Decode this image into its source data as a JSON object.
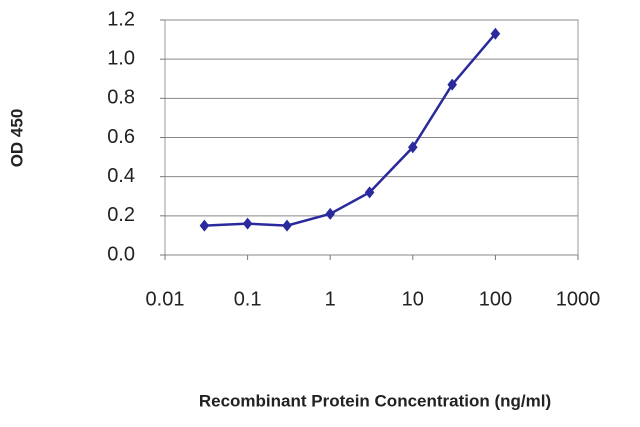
{
  "chart_data": {
    "type": "line",
    "x_label": "Recombinant Protein Concentration (ng/ml)",
    "y_label": "OD 450",
    "x": [
      0.03,
      0.1,
      0.3,
      1,
      3,
      10,
      30,
      100
    ],
    "series": [
      {
        "color": "#2a2a9c",
        "values": [
          0.15,
          0.16,
          0.15,
          0.21,
          0.32,
          0.55,
          0.87,
          1.13
        ]
      }
    ],
    "xscale": "log",
    "xlim": [
      0.01,
      1000
    ],
    "xticks": [
      0.01,
      0.1,
      1,
      10,
      100,
      1000
    ],
    "ylim": [
      0,
      1.2
    ],
    "yticks": [
      {
        "value": 0,
        "label": "0.0"
      },
      0.2,
      0.4,
      0.6,
      0.8,
      {
        "value": 1,
        "label": "1.0"
      },
      1.2
    ],
    "grid": true
  }
}
